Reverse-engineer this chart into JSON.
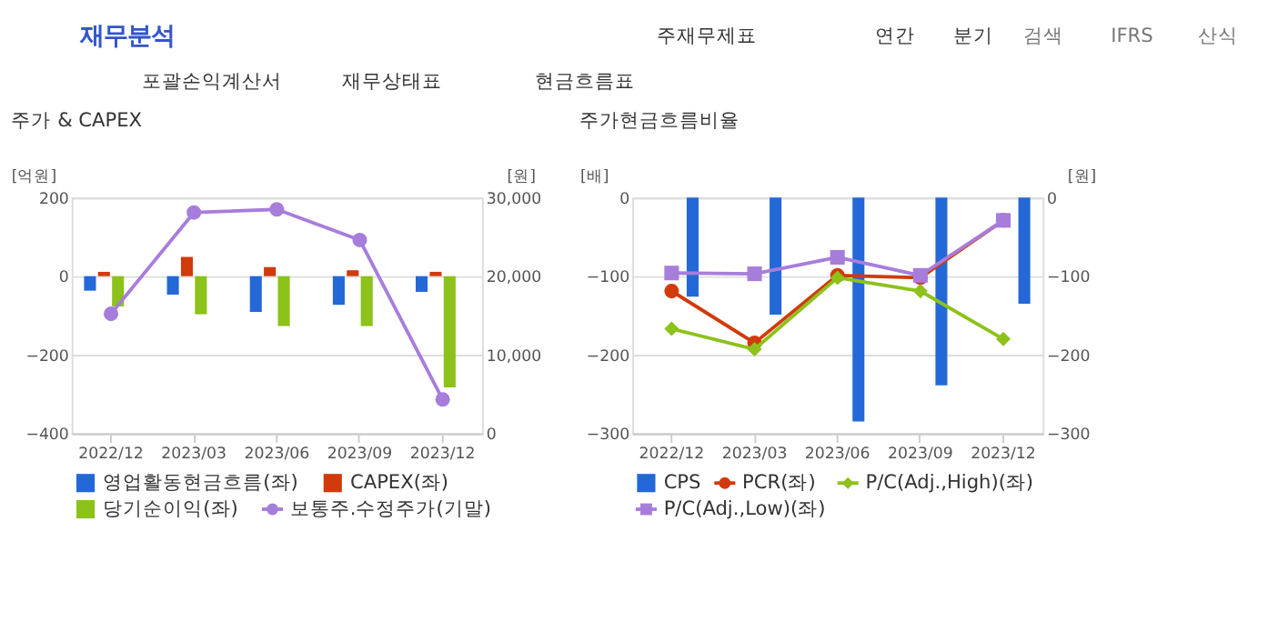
{
  "chart_data": [
    {
      "type": "bar",
      "title": "주가 & CAPEX",
      "annotations": [
        "재무분석",
        "주재무제표",
        "연간",
        "분기",
        "검색",
        "IFRS",
        "산식",
        "포괄손익계산서",
        "재무상태표",
        "현금흐름표"
      ],
      "categories": [
        "2022/12",
        "2023/03",
        "2023/06",
        "2023/09",
        "2023/12"
      ],
      "series": [
        {
          "name": "영업활동현금흐름(좌)",
          "color": "#2468d8",
          "values": [
            -37,
            -47,
            -91,
            -73,
            -40
          ]
        },
        {
          "name": "CAPEX(좌)",
          "color": "#d13a0a",
          "values": [
            11,
            49,
            23,
            15,
            11
          ]
        },
        {
          "name": "당기순이익(좌)",
          "color": "#8cc21a",
          "values": [
            -77,
            -97,
            -127,
            -127,
            -283
          ]
        },
        {
          "name": "보통주.수정주가(기말)",
          "type": "line",
          "axis": "y2",
          "marker": "circle",
          "color": "#a77ddc",
          "values": [
            15200,
            28100,
            28500,
            24600,
            4300
          ]
        }
      ],
      "ylabel": "[억원]",
      "y2label": "[원]",
      "ylim": [
        -400,
        200
      ],
      "yticks": [
        -400,
        -200,
        0,
        200
      ],
      "y2lim": [
        0,
        30000
      ],
      "y2ticks": [
        0,
        {
          "value": 10000,
          "label": "10,000"
        },
        {
          "value": 20000,
          "label": "20,000"
        },
        {
          "value": 30000,
          "label": "30,000"
        }
      ],
      "grid": "y",
      "legend": "bottom"
    },
    {
      "type": "bar",
      "title": "주가현금흐름비율",
      "categories": [
        "2022/12",
        "2023/03",
        "2023/06",
        "2023/09",
        "2023/12"
      ],
      "series": [
        {
          "name": "CPS",
          "axis": "y2",
          "color": "#2468d8",
          "values": [
            -126,
            -149,
            -285,
            -239,
            -135
          ]
        },
        {
          "name": "PCR(좌)",
          "type": "line",
          "marker": "circle",
          "color": "#d13a0a",
          "values": [
            -119,
            -185,
            -99,
            -102,
            -29
          ]
        },
        {
          "name": "P/C(Adj.,High)(좌)",
          "type": "line",
          "marker": "diamond",
          "color": "#8cc21a",
          "values": [
            -167,
            -193,
            -102,
            -119,
            -180
          ]
        },
        {
          "name": "P/C(Adj.,Low)(좌)",
          "type": "line",
          "marker": "square",
          "color": "#a77ddc",
          "values": [
            -96,
            -97,
            -76,
            -99,
            -29
          ]
        }
      ],
      "ylabel": "[배]",
      "y2label": "[원]",
      "ylim": [
        -300,
        0
      ],
      "yticks": [
        -300,
        -200,
        -100,
        0
      ],
      "y2lim": [
        -300,
        0
      ],
      "y2ticks": [
        -300,
        -200,
        -100,
        0
      ],
      "grid": "y",
      "legend": "bottom"
    }
  ]
}
